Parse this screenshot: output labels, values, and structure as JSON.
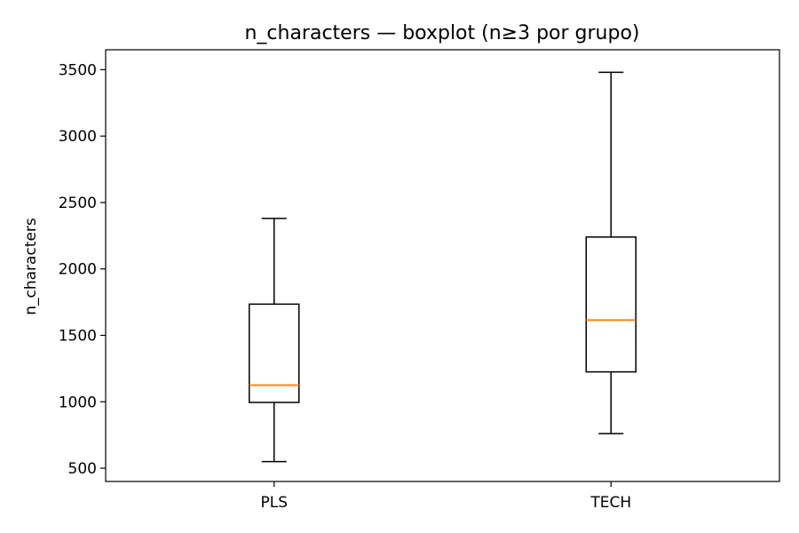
{
  "chart_data": {
    "type": "boxplot",
    "title": "n_characters — boxplot (n≥3 por grupo)",
    "xlabel": "",
    "ylabel": "n_characters",
    "ylim": [
      400,
      3650
    ],
    "yticks": [
      500,
      1000,
      1500,
      2000,
      2500,
      3000,
      3500
    ],
    "categories": [
      "PLS",
      "TECH"
    ],
    "boxes": [
      {
        "category": "PLS",
        "whisker_low": 550,
        "q1": 995,
        "median": 1125,
        "q3": 1735,
        "whisker_high": 2380
      },
      {
        "category": "TECH",
        "whisker_low": 760,
        "q1": 1225,
        "median": 1615,
        "q3": 2240,
        "whisker_high": 3480
      }
    ],
    "grid": false,
    "colors": {
      "box": "#000000",
      "median": "#ff7f0e"
    }
  }
}
